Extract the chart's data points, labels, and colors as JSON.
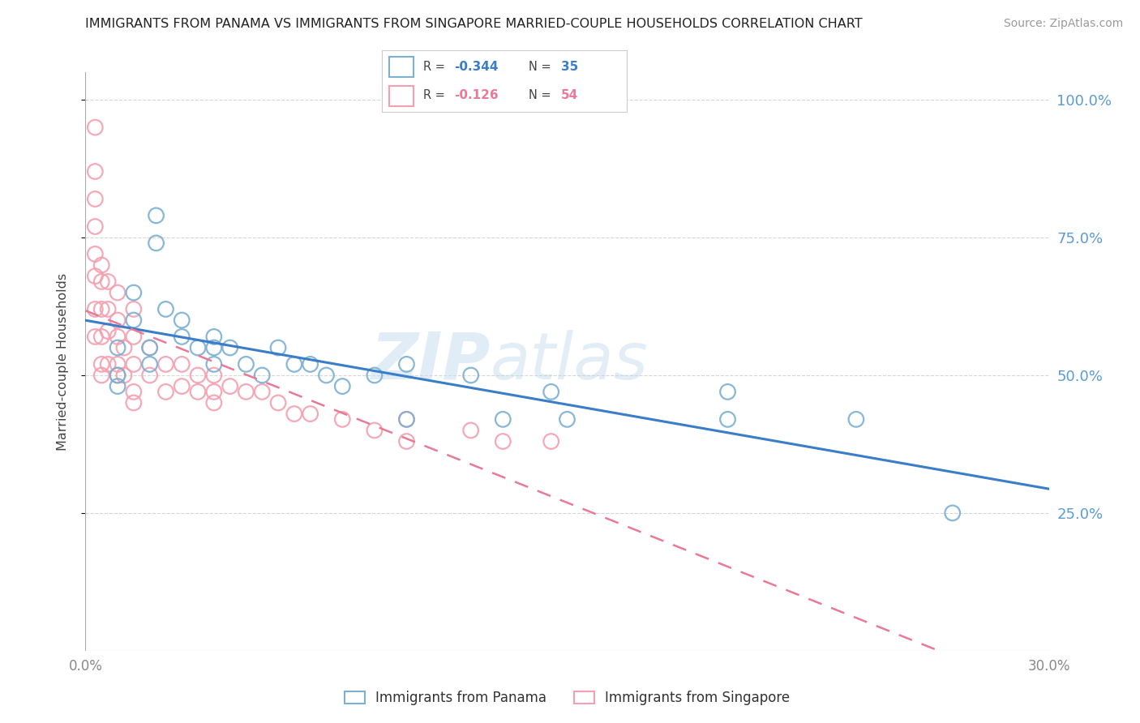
{
  "title": "IMMIGRANTS FROM PANAMA VS IMMIGRANTS FROM SINGAPORE MARRIED-COUPLE HOUSEHOLDS CORRELATION CHART",
  "source": "Source: ZipAtlas.com",
  "ylabel": "Married-couple Households",
  "xlim": [
    0.0,
    0.3
  ],
  "ylim": [
    0.0,
    1.05
  ],
  "yticks": [
    0.25,
    0.5,
    0.75,
    1.0
  ],
  "ytick_labels": [
    "25.0%",
    "50.0%",
    "75.0%",
    "100.0%"
  ],
  "xticks": [
    0.0,
    0.05,
    0.1,
    0.15,
    0.2,
    0.25,
    0.3
  ],
  "xtick_labels": [
    "0.0%",
    "",
    "",
    "",
    "",
    "",
    "30.0%"
  ],
  "panama_color": "#7bafd4",
  "singapore_color": "#f4a0b0",
  "panama_line_color": "#3a7dc9",
  "singapore_line_color": "#e87a98",
  "panama_R": -0.344,
  "panama_N": 35,
  "singapore_R": -0.126,
  "singapore_N": 54,
  "panama_scatter_x": [
    0.022,
    0.022,
    0.015,
    0.015,
    0.01,
    0.01,
    0.01,
    0.02,
    0.02,
    0.025,
    0.03,
    0.03,
    0.035,
    0.04,
    0.04,
    0.04,
    0.045,
    0.05,
    0.055,
    0.06,
    0.065,
    0.07,
    0.075,
    0.08,
    0.09,
    0.1,
    0.1,
    0.12,
    0.13,
    0.145,
    0.15,
    0.2,
    0.24,
    0.27,
    0.2
  ],
  "panama_scatter_y": [
    0.79,
    0.74,
    0.65,
    0.6,
    0.55,
    0.5,
    0.48,
    0.55,
    0.52,
    0.62,
    0.6,
    0.57,
    0.55,
    0.57,
    0.55,
    0.52,
    0.55,
    0.52,
    0.5,
    0.55,
    0.52,
    0.52,
    0.5,
    0.48,
    0.5,
    0.52,
    0.42,
    0.5,
    0.42,
    0.47,
    0.42,
    0.47,
    0.42,
    0.25,
    0.42
  ],
  "singapore_scatter_x": [
    0.003,
    0.003,
    0.003,
    0.003,
    0.003,
    0.003,
    0.003,
    0.003,
    0.005,
    0.005,
    0.005,
    0.005,
    0.005,
    0.005,
    0.007,
    0.007,
    0.007,
    0.007,
    0.01,
    0.01,
    0.01,
    0.01,
    0.01,
    0.012,
    0.012,
    0.015,
    0.015,
    0.015,
    0.015,
    0.015,
    0.02,
    0.02,
    0.025,
    0.025,
    0.03,
    0.03,
    0.035,
    0.035,
    0.04,
    0.04,
    0.04,
    0.045,
    0.05,
    0.055,
    0.06,
    0.065,
    0.07,
    0.08,
    0.09,
    0.1,
    0.1,
    0.12,
    0.13,
    0.145
  ],
  "singapore_scatter_y": [
    0.95,
    0.87,
    0.82,
    0.77,
    0.72,
    0.68,
    0.62,
    0.57,
    0.7,
    0.67,
    0.62,
    0.57,
    0.52,
    0.5,
    0.67,
    0.62,
    0.58,
    0.52,
    0.65,
    0.6,
    0.57,
    0.52,
    0.5,
    0.55,
    0.5,
    0.62,
    0.57,
    0.52,
    0.47,
    0.45,
    0.55,
    0.5,
    0.52,
    0.47,
    0.52,
    0.48,
    0.5,
    0.47,
    0.5,
    0.47,
    0.45,
    0.48,
    0.47,
    0.47,
    0.45,
    0.43,
    0.43,
    0.42,
    0.4,
    0.42,
    0.38,
    0.4,
    0.38,
    0.38
  ],
  "watermark_zip": "ZIP",
  "watermark_atlas": "atlas",
  "background_color": "#ffffff",
  "grid_color": "#cccccc",
  "right_tick_color": "#5b9bd5",
  "legend_border_color": "#cccccc",
  "panama_legend_R": "-0.344",
  "panama_legend_N": "35",
  "singapore_legend_R": "-0.126",
  "singapore_legend_N": "54"
}
